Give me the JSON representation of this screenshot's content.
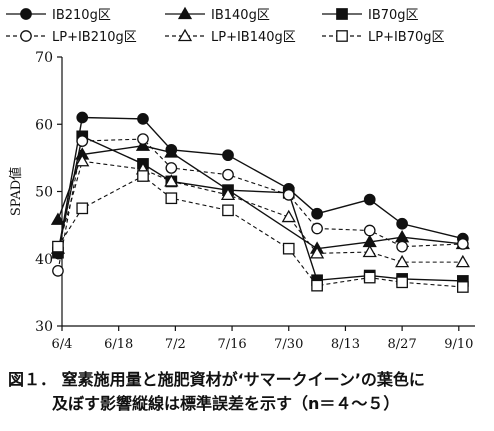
{
  "chart_data": {
    "type": "line",
    "ylabel": "SPAD値",
    "ylim": [
      30,
      70
    ],
    "yticks": [
      30,
      40,
      50,
      60,
      70
    ],
    "xtick_labels": [
      "6/4",
      "6/18",
      "7/2",
      "7/16",
      "7/30",
      "8/13",
      "8/27",
      "9/10"
    ],
    "xticks_day": [
      0,
      14,
      28,
      42,
      56,
      70,
      84,
      98
    ],
    "x_range_day": [
      0,
      102
    ],
    "x_days": [
      -1,
      5,
      13,
      20,
      27,
      34,
      41,
      49,
      56,
      63,
      76,
      84,
      99
    ],
    "series": [
      {
        "name": "IB210g区",
        "marker": "circle",
        "filled": true,
        "dash": false,
        "x": [
          -1,
          5,
          13,
          20,
          27,
          34,
          41,
          49,
          56,
          63,
          76,
          84,
          99
        ],
        "values": [
          40.8,
          61.0,
          null,
          60.8,
          56.2,
          null,
          55.4,
          null,
          50.4,
          46.7,
          48.8,
          45.2,
          43.0
        ]
      },
      {
        "name": "IB140g区",
        "marker": "triangle",
        "filled": true,
        "dash": false,
        "x": [
          -1,
          5,
          13,
          20,
          27,
          34,
          41,
          49,
          56,
          63,
          76,
          84,
          99
        ],
        "values": [
          45.8,
          55.5,
          null,
          56.8,
          55.8,
          null,
          null,
          null,
          null,
          41.5,
          42.5,
          43.2,
          42.2
        ]
      },
      {
        "name": "IB70g区",
        "marker": "square",
        "filled": true,
        "dash": false,
        "x": [
          -1,
          5,
          13,
          20,
          27,
          34,
          41,
          49,
          56,
          63,
          76,
          84,
          99
        ],
        "values": [
          40.9,
          58.2,
          null,
          54.1,
          51.5,
          null,
          50.2,
          null,
          49.8,
          36.8,
          37.5,
          37.0,
          36.7
        ]
      },
      {
        "name": "LP+IB210g区",
        "marker": "circle",
        "filled": false,
        "dash": true,
        "x": [
          -1,
          5,
          13,
          20,
          27,
          34,
          41,
          49,
          56,
          63,
          76,
          84,
          99
        ],
        "values": [
          38.2,
          57.5,
          null,
          57.8,
          53.5,
          null,
          52.5,
          null,
          49.5,
          44.5,
          44.2,
          41.8,
          42.2
        ]
      },
      {
        "name": "LP+IB140g区",
        "marker": "triangle",
        "filled": false,
        "dash": true,
        "x": [
          -1,
          5,
          13,
          20,
          27,
          34,
          41,
          49,
          56,
          63,
          76,
          84,
          99
        ],
        "values": [
          41.5,
          54.5,
          null,
          53.3,
          51.5,
          null,
          49.5,
          null,
          46.2,
          40.8,
          41.0,
          39.5,
          39.5
        ]
      },
      {
        "name": "LP+IB70g区",
        "marker": "square",
        "filled": false,
        "dash": true,
        "x": [
          -1,
          5,
          13,
          20,
          27,
          34,
          41,
          49,
          56,
          63,
          76,
          84,
          99
        ],
        "values": [
          41.8,
          47.5,
          null,
          52.3,
          49.0,
          null,
          47.2,
          null,
          41.5,
          36.0,
          37.2,
          36.5,
          35.8
        ]
      }
    ]
  },
  "caption": {
    "line1": "図１． 窒素施用量と施肥資材が‘サマークイーン’の葉色に",
    "line2": "及ぼす影響縦線は標準誤差を示す（n＝４～５）"
  }
}
